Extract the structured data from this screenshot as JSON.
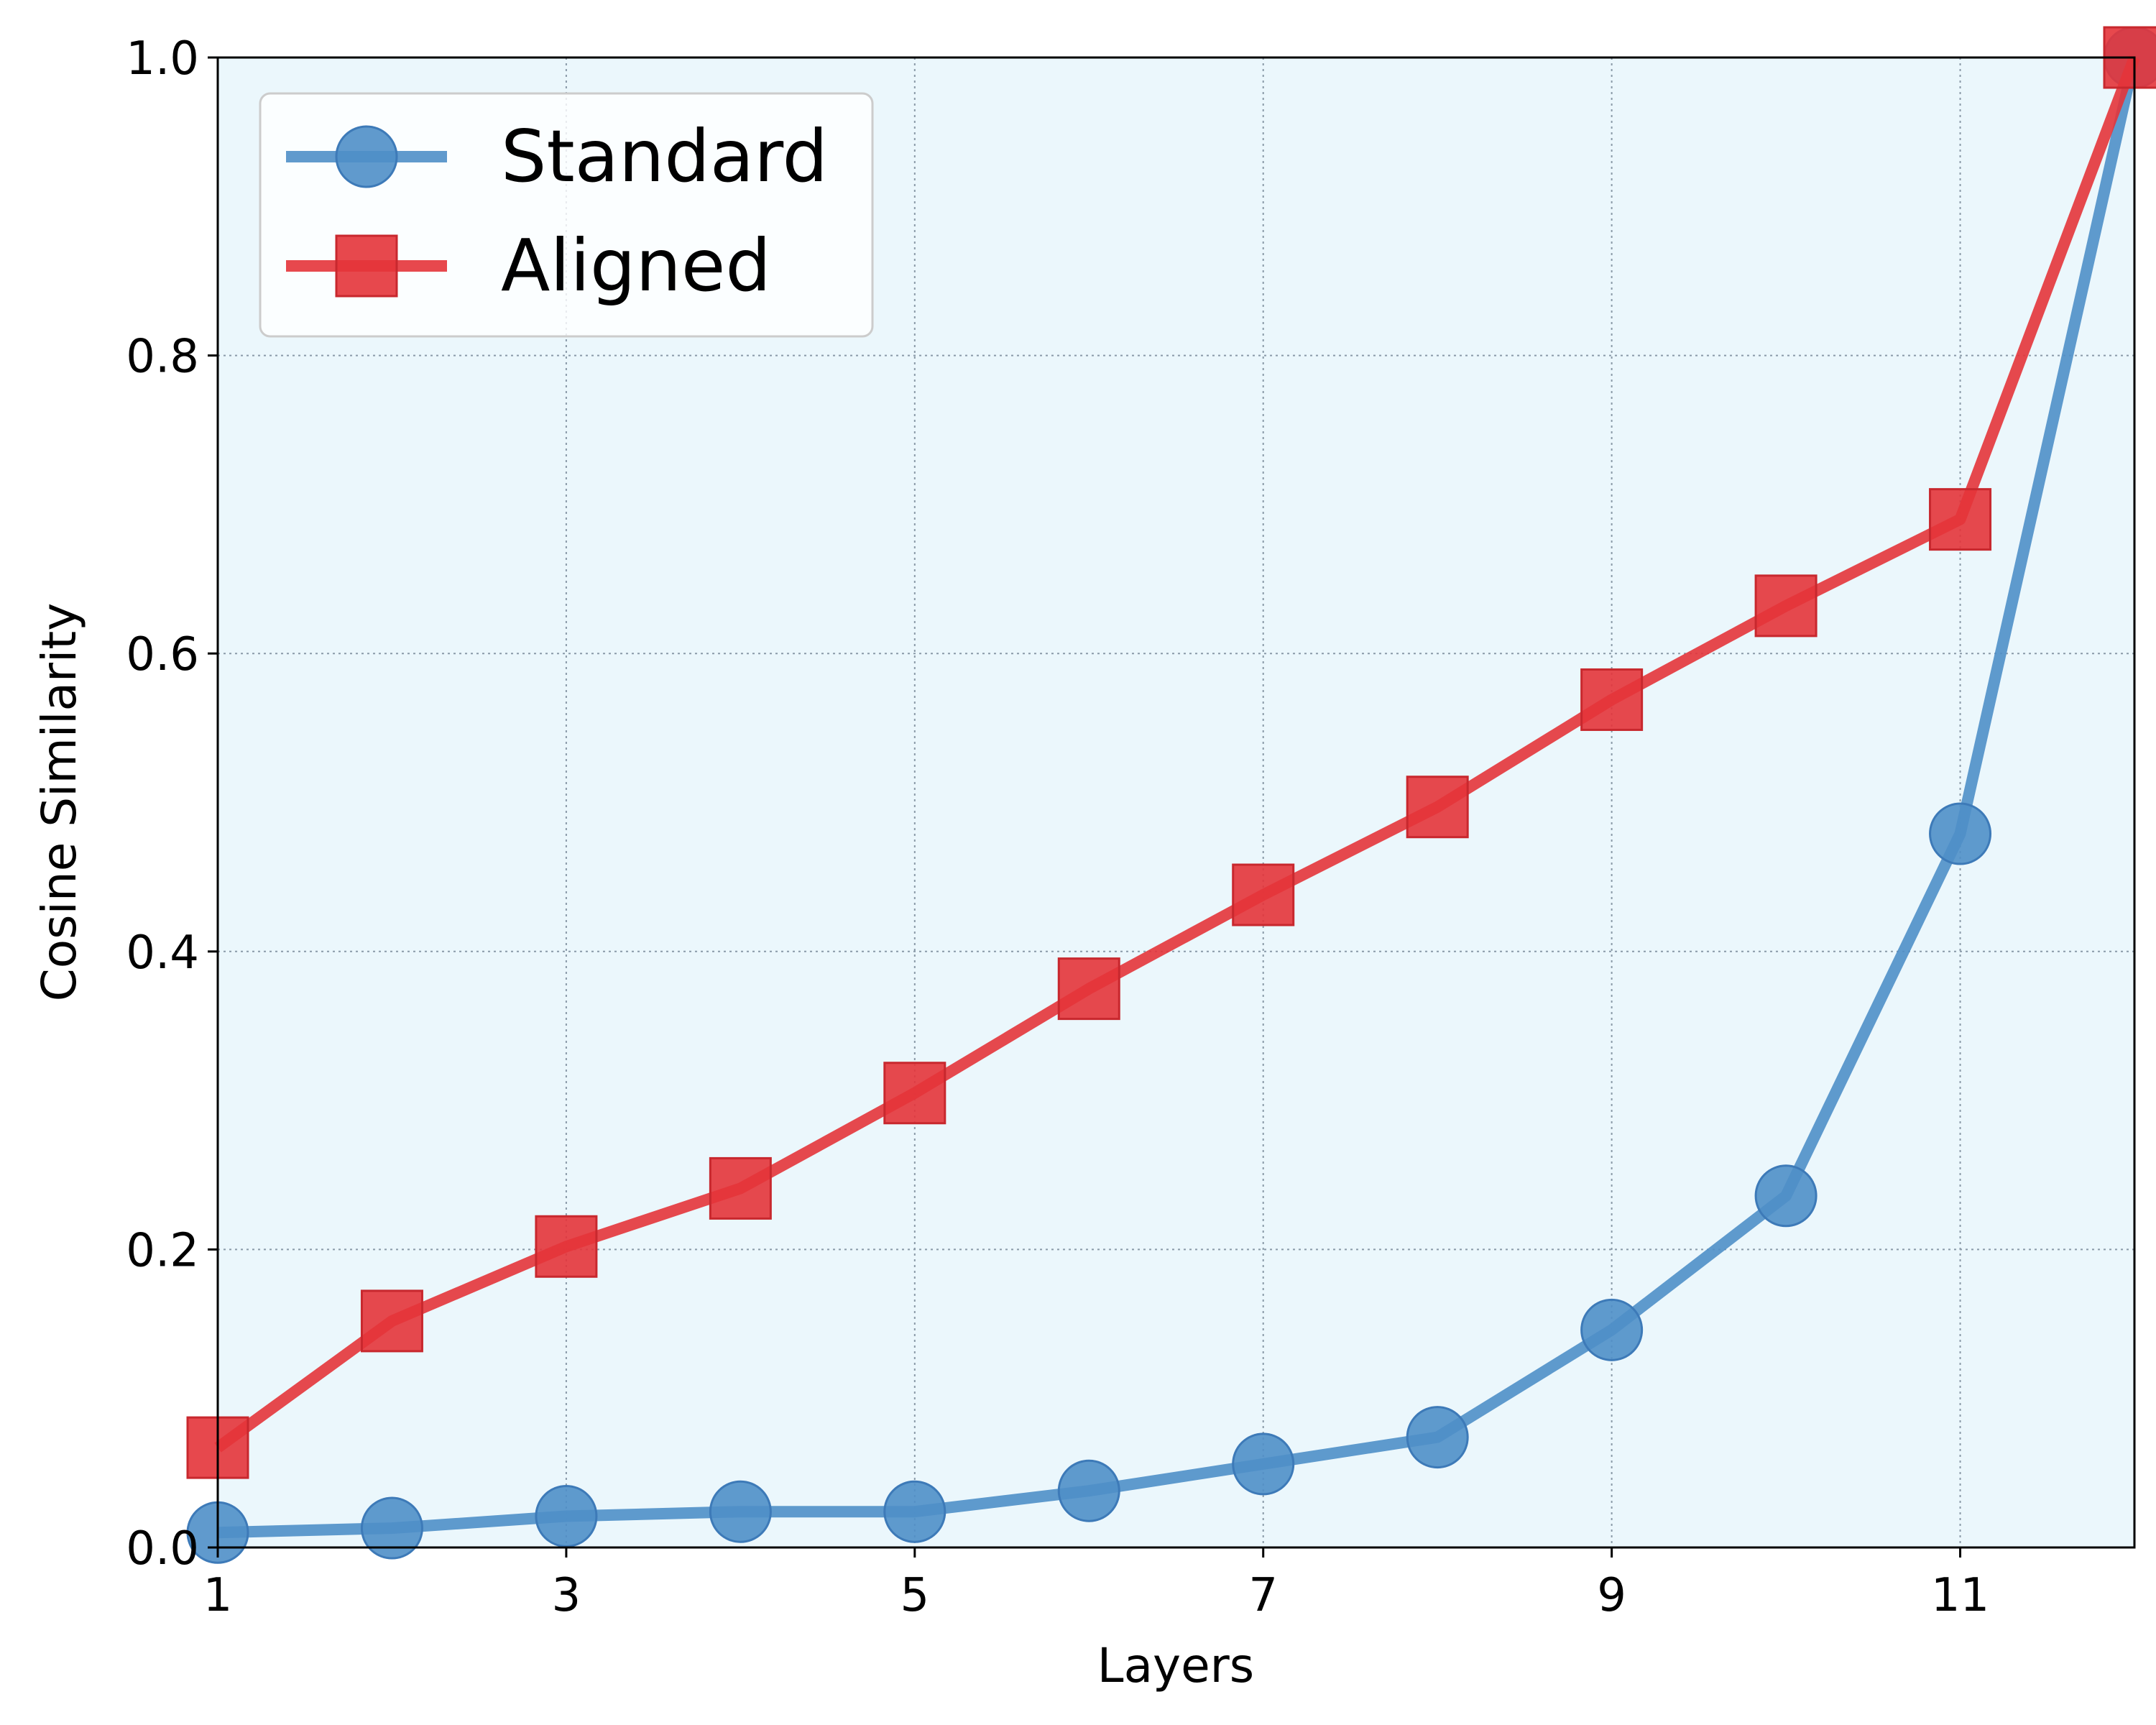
{
  "chart_data": {
    "type": "line",
    "xlabel": "Layers",
    "ylabel": "Cosine Similarity",
    "xlim": [
      1,
      12
    ],
    "ylim": [
      0,
      1.0
    ],
    "xticks": [
      1,
      3,
      5,
      7,
      9,
      11
    ],
    "xtick_labels": [
      "1",
      "3",
      "5",
      "7",
      "9",
      "11"
    ],
    "yticks": [
      0.0,
      0.2,
      0.4,
      0.6,
      0.8,
      1.0
    ],
    "ytick_labels": [
      "0.0",
      "0.2",
      "0.4",
      "0.6",
      "0.8",
      "1.0"
    ],
    "grid": true,
    "legend_position": "top-left",
    "x": [
      1,
      2,
      3,
      4,
      5,
      6,
      7,
      8,
      9,
      10,
      11,
      12
    ],
    "series": [
      {
        "name": "Standard",
        "marker": "circle",
        "color": "#4f8fc8",
        "values": [
          0.01,
          0.013,
          0.021,
          0.024,
          0.024,
          0.038,
          0.056,
          0.074,
          0.146,
          0.236,
          0.479,
          1.0
        ]
      },
      {
        "name": "Aligned",
        "marker": "square",
        "color": "#e4343a",
        "values": [
          0.067,
          0.152,
          0.202,
          0.241,
          0.305,
          0.375,
          0.438,
          0.497,
          0.569,
          0.632,
          0.69,
          1.0
        ]
      }
    ],
    "colors": {
      "plot_background": "#ebf7fc",
      "grid": "#8a9aa8"
    }
  }
}
